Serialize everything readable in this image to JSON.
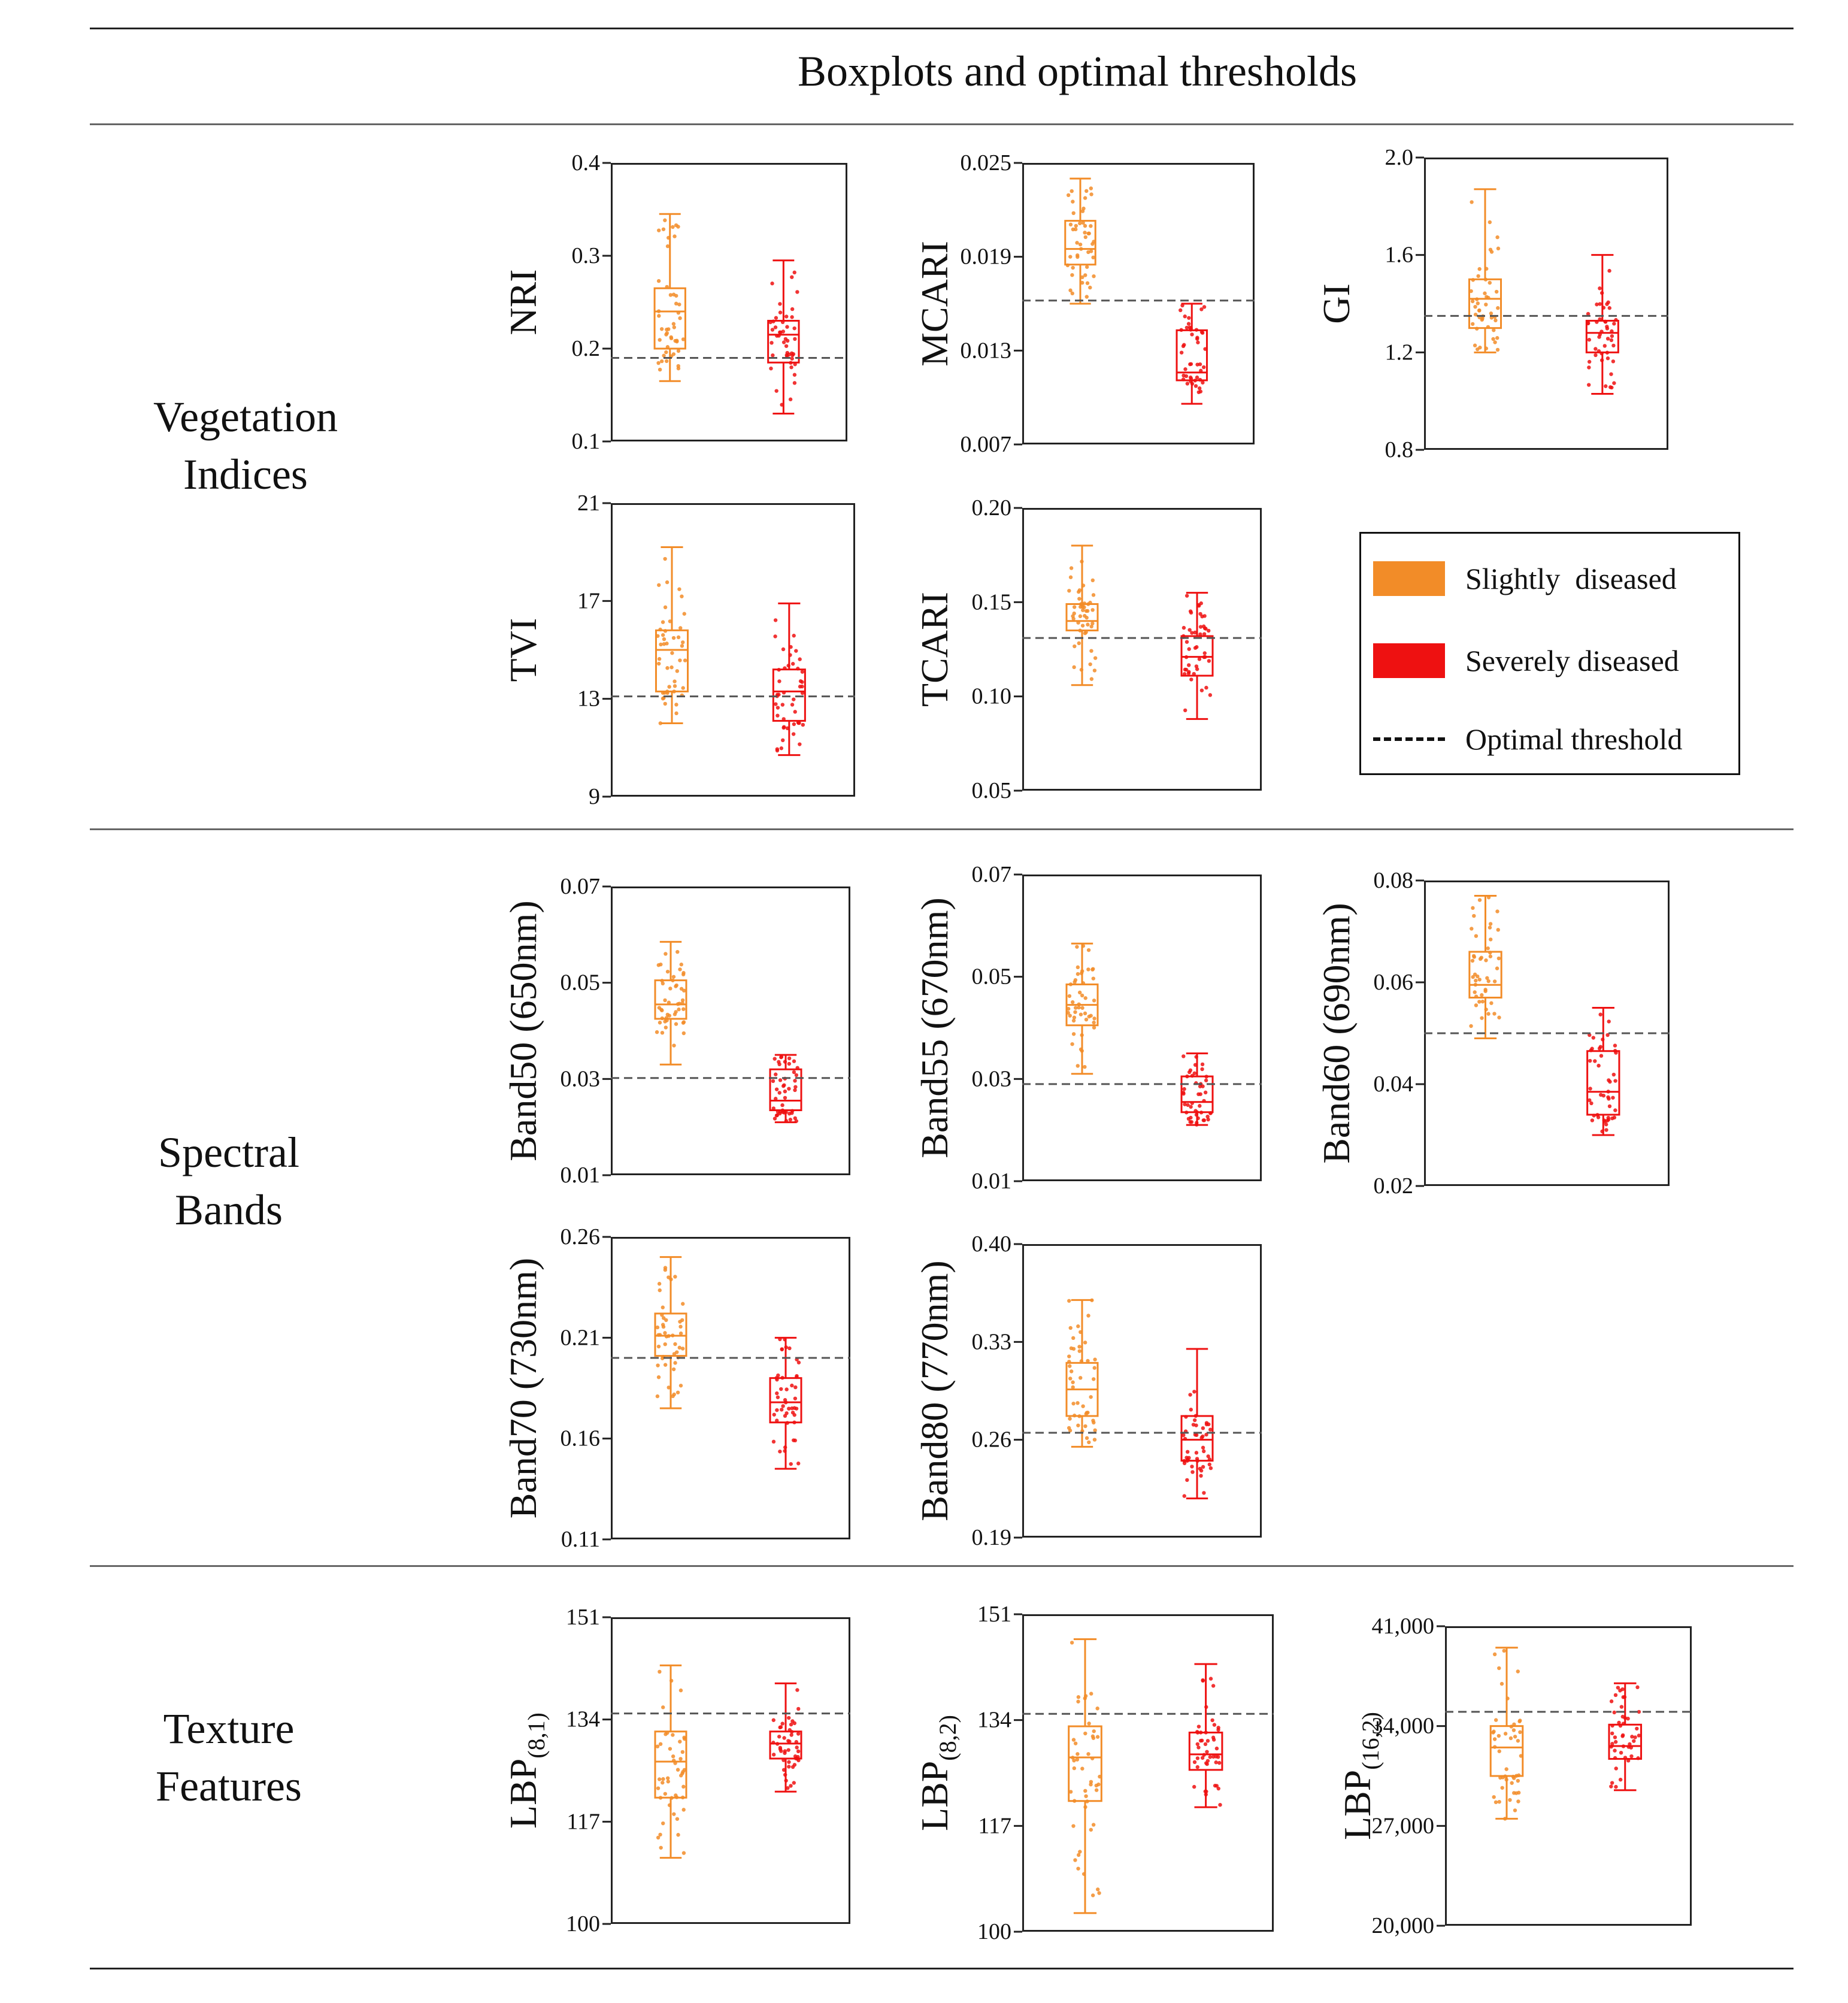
{
  "header": {
    "title": "Boxplots and optimal thresholds"
  },
  "sections": [
    {
      "label": "Vegetation\nIndices"
    },
    {
      "label": "Spectral\nBands"
    },
    {
      "label": "Texture\nFeatures"
    }
  ],
  "legend": {
    "items": [
      {
        "label": "Slightly  diseased",
        "color": "#f28c28",
        "kind": "box"
      },
      {
        "label": "Severely diseased",
        "color": "#ee1111",
        "kind": "box"
      },
      {
        "label": "Optimal threshold",
        "color": "#111111",
        "kind": "dashed-line"
      }
    ]
  },
  "colors": {
    "slightly": "#f28c28",
    "severely": "#ee1111",
    "threshold": "#555555"
  },
  "chart_data": [
    {
      "id": "nri",
      "type": "boxplot",
      "ylabel": "NRI",
      "ylim": [
        0.1,
        0.4
      ],
      "yticks": [
        {
          "v": 0.1,
          "t": "0.1"
        },
        {
          "v": 0.2,
          "t": "0.2"
        },
        {
          "v": 0.3,
          "t": "0.3"
        },
        {
          "v": 0.4,
          "t": "0.4"
        }
      ],
      "threshold": 0.19,
      "groups": [
        {
          "name": "Slightly diseased",
          "min": 0.165,
          "q1": 0.2,
          "median": 0.24,
          "q3": 0.265,
          "max": 0.345
        },
        {
          "name": "Severely diseased",
          "min": 0.13,
          "q1": 0.185,
          "median": 0.215,
          "q3": 0.23,
          "max": 0.295
        }
      ]
    },
    {
      "id": "mcari",
      "type": "boxplot",
      "ylabel": "MCARI",
      "ylim": [
        0.007,
        0.025
      ],
      "yticks": [
        {
          "v": 0.007,
          "t": "0.007"
        },
        {
          "v": 0.013,
          "t": "0.013"
        },
        {
          "v": 0.019,
          "t": "0.019"
        },
        {
          "v": 0.025,
          "t": "0.025"
        }
      ],
      "threshold": 0.0162,
      "groups": [
        {
          "name": "Slightly diseased",
          "min": 0.016,
          "q1": 0.0185,
          "median": 0.0195,
          "q3": 0.0213,
          "max": 0.024
        },
        {
          "name": "Severely diseased",
          "min": 0.0096,
          "q1": 0.0111,
          "median": 0.0116,
          "q3": 0.0143,
          "max": 0.016
        }
      ]
    },
    {
      "id": "gi",
      "type": "boxplot",
      "ylabel": "GI",
      "ylim": [
        0.8,
        2.0
      ],
      "yticks": [
        {
          "v": 0.8,
          "t": "0.8"
        },
        {
          "v": 1.2,
          "t": "1.2"
        },
        {
          "v": 1.6,
          "t": "1.6"
        },
        {
          "v": 2.0,
          "t": "2.0"
        }
      ],
      "threshold": 1.35,
      "groups": [
        {
          "name": "Slightly diseased",
          "min": 1.2,
          "q1": 1.3,
          "median": 1.42,
          "q3": 1.5,
          "max": 1.87
        },
        {
          "name": "Severely diseased",
          "min": 1.03,
          "q1": 1.2,
          "median": 1.28,
          "q3": 1.33,
          "max": 1.6
        }
      ]
    },
    {
      "id": "tvi",
      "type": "boxplot",
      "ylabel": "TVI",
      "ylim": [
        9,
        21
      ],
      "yticks": [
        {
          "v": 9,
          "t": "9"
        },
        {
          "v": 13,
          "t": "13"
        },
        {
          "v": 17,
          "t": "17"
        },
        {
          "v": 21,
          "t": "21"
        }
      ],
      "threshold": 13.1,
      "groups": [
        {
          "name": "Slightly diseased",
          "min": 12.0,
          "q1": 13.3,
          "median": 15.0,
          "q3": 15.8,
          "max": 19.2
        },
        {
          "name": "Severely diseased",
          "min": 10.7,
          "q1": 12.1,
          "median": 13.3,
          "q3": 14.2,
          "max": 16.9
        }
      ]
    },
    {
      "id": "tcari",
      "type": "boxplot",
      "ylabel": "TCARI",
      "ylim": [
        0.05,
        0.2
      ],
      "yticks": [
        {
          "v": 0.05,
          "t": "0.05"
        },
        {
          "v": 0.1,
          "t": "0.10"
        },
        {
          "v": 0.15,
          "t": "0.15"
        },
        {
          "v": 0.2,
          "t": "0.20"
        }
      ],
      "threshold": 0.131,
      "groups": [
        {
          "name": "Slightly diseased",
          "min": 0.106,
          "q1": 0.135,
          "median": 0.14,
          "q3": 0.149,
          "max": 0.18
        },
        {
          "name": "Severely diseased",
          "min": 0.088,
          "q1": 0.111,
          "median": 0.121,
          "q3": 0.132,
          "max": 0.155
        }
      ]
    },
    {
      "id": "band50",
      "type": "boxplot",
      "ylabel": "Band50 (650nm)",
      "ylim": [
        0.01,
        0.07
      ],
      "yticks": [
        {
          "v": 0.01,
          "t": "0.01"
        },
        {
          "v": 0.03,
          "t": "0.03"
        },
        {
          "v": 0.05,
          "t": "0.05"
        },
        {
          "v": 0.07,
          "t": "0.07"
        }
      ],
      "threshold": 0.0302,
      "groups": [
        {
          "name": "Slightly diseased",
          "min": 0.033,
          "q1": 0.0425,
          "median": 0.0455,
          "q3": 0.0505,
          "max": 0.0585
        },
        {
          "name": "Severely diseased",
          "min": 0.021,
          "q1": 0.0235,
          "median": 0.0255,
          "q3": 0.032,
          "max": 0.035
        }
      ]
    },
    {
      "id": "band55",
      "type": "boxplot",
      "ylabel": "Band55 (670nm)",
      "ylim": [
        0.01,
        0.07
      ],
      "yticks": [
        {
          "v": 0.01,
          "t": "0.01"
        },
        {
          "v": 0.03,
          "t": "0.03"
        },
        {
          "v": 0.05,
          "t": "0.05"
        },
        {
          "v": 0.07,
          "t": "0.07"
        }
      ],
      "threshold": 0.029,
      "groups": [
        {
          "name": "Slightly diseased",
          "min": 0.031,
          "q1": 0.0405,
          "median": 0.0445,
          "q3": 0.0485,
          "max": 0.0565
        },
        {
          "name": "Severely diseased",
          "min": 0.021,
          "q1": 0.0235,
          "median": 0.0255,
          "q3": 0.0305,
          "max": 0.035
        }
      ]
    },
    {
      "id": "band60",
      "type": "boxplot",
      "ylabel": "Band60 (690nm)",
      "ylim": [
        0.02,
        0.08
      ],
      "yticks": [
        {
          "v": 0.02,
          "t": "0.02"
        },
        {
          "v": 0.04,
          "t": "0.04"
        },
        {
          "v": 0.06,
          "t": "0.06"
        },
        {
          "v": 0.08,
          "t": "0.08"
        }
      ],
      "threshold": 0.05,
      "groups": [
        {
          "name": "Slightly diseased",
          "min": 0.049,
          "q1": 0.057,
          "median": 0.0595,
          "q3": 0.066,
          "max": 0.077
        },
        {
          "name": "Severely diseased",
          "min": 0.03,
          "q1": 0.034,
          "median": 0.0385,
          "q3": 0.0465,
          "max": 0.055
        }
      ]
    },
    {
      "id": "band70",
      "type": "boxplot",
      "ylabel": "Band70 (730nm)",
      "ylim": [
        0.11,
        0.26
      ],
      "yticks": [
        {
          "v": 0.11,
          "t": "0.11"
        },
        {
          "v": 0.16,
          "t": "0.16"
        },
        {
          "v": 0.21,
          "t": "0.21"
        },
        {
          "v": 0.26,
          "t": "0.26"
        }
      ],
      "threshold": 0.2,
      "groups": [
        {
          "name": "Slightly diseased",
          "min": 0.175,
          "q1": 0.201,
          "median": 0.211,
          "q3": 0.222,
          "max": 0.25
        },
        {
          "name": "Severely diseased",
          "min": 0.145,
          "q1": 0.168,
          "median": 0.178,
          "q3": 0.19,
          "max": 0.21
        }
      ]
    },
    {
      "id": "band80",
      "type": "boxplot",
      "ylabel": "Band80 (770nm)",
      "ylim": [
        0.19,
        0.4
      ],
      "yticks": [
        {
          "v": 0.19,
          "t": "0.19"
        },
        {
          "v": 0.26,
          "t": "0.26"
        },
        {
          "v": 0.33,
          "t": "0.33"
        },
        {
          "v": 0.4,
          "t": "0.40"
        }
      ],
      "threshold": 0.265,
      "groups": [
        {
          "name": "Slightly diseased",
          "min": 0.255,
          "q1": 0.277,
          "median": 0.296,
          "q3": 0.315,
          "max": 0.36
        },
        {
          "name": "Severely diseased",
          "min": 0.218,
          "q1": 0.245,
          "median": 0.26,
          "q3": 0.277,
          "max": 0.325
        }
      ]
    },
    {
      "id": "lbp81",
      "type": "boxplot",
      "ylabel": "LBP",
      "ylabel_sub": "(8,1)",
      "ylim": [
        100,
        151
      ],
      "yticks": [
        {
          "v": 100,
          "t": "100"
        },
        {
          "v": 117,
          "t": "117"
        },
        {
          "v": 134,
          "t": "134"
        },
        {
          "v": 151,
          "t": "151"
        }
      ],
      "threshold": 135,
      "groups": [
        {
          "name": "Slightly diseased",
          "min": 111,
          "q1": 121,
          "median": 127,
          "q3": 132,
          "max": 143
        },
        {
          "name": "Severely diseased",
          "min": 122,
          "q1": 127.5,
          "median": 130,
          "q3": 132,
          "max": 140
        }
      ]
    },
    {
      "id": "lbp82",
      "type": "boxplot",
      "ylabel": "LBP",
      "ylabel_sub": "(8,2)",
      "ylim": [
        100,
        151
      ],
      "yticks": [
        {
          "v": 100,
          "t": "100"
        },
        {
          "v": 117,
          "t": "117"
        },
        {
          "v": 134,
          "t": "134"
        },
        {
          "v": 151,
          "t": "151"
        }
      ],
      "threshold": 135,
      "groups": [
        {
          "name": "Slightly diseased",
          "min": 103,
          "q1": 121,
          "median": 128,
          "q3": 133,
          "max": 147
        },
        {
          "name": "Severely diseased",
          "min": 120,
          "q1": 126,
          "median": 128.5,
          "q3": 132,
          "max": 143
        }
      ]
    },
    {
      "id": "lbp162",
      "type": "boxplot",
      "ylabel": "LBP",
      "ylabel_sub": "(16,2)",
      "ylim": [
        20000,
        41000
      ],
      "yticks": [
        {
          "v": 20000,
          "t": "20,000"
        },
        {
          "v": 27000,
          "t": "27,000"
        },
        {
          "v": 34000,
          "t": "34,000"
        },
        {
          "v": 41000,
          "t": "41,000"
        }
      ],
      "threshold": 35000,
      "groups": [
        {
          "name": "Slightly diseased",
          "min": 27500,
          "q1": 30500,
          "median": 32500,
          "q3": 34000,
          "max": 39500
        },
        {
          "name": "Severely diseased",
          "min": 29500,
          "q1": 31700,
          "median": 32600,
          "q3": 34100,
          "max": 37000
        }
      ]
    }
  ]
}
